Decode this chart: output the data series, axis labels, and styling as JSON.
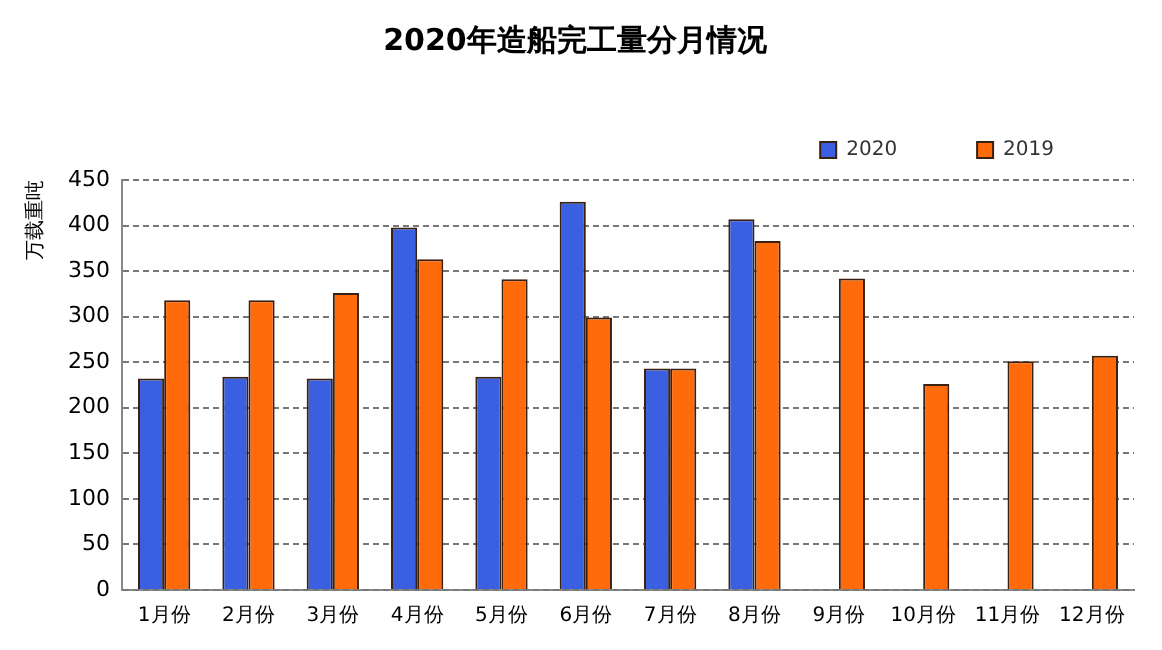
{
  "chart_data": {
    "type": "bar",
    "title": "2020年造船完工量分月情况",
    "ylabel": "万载重吨",
    "categories": [
      "1月份",
      "2月份",
      "3月份",
      "4月份",
      "5月份",
      "6月份",
      "7月份",
      "8月份",
      "9月份",
      "10月份",
      "11月份",
      "12月份"
    ],
    "series": [
      {
        "name": "2020",
        "color": "#3a5fe0",
        "values": [
          232,
          234,
          232,
          398,
          234,
          426,
          243,
          407,
          null,
          null,
          null,
          null
        ]
      },
      {
        "name": "2019",
        "color": "#ff6a0a",
        "values": [
          318,
          318,
          326,
          363,
          341,
          299,
          243,
          383,
          342,
          226,
          251,
          257
        ]
      }
    ],
    "ylim": [
      0,
      450
    ],
    "yticks": [
      0,
      50,
      100,
      150,
      200,
      250,
      300,
      350,
      400,
      450
    ],
    "grid": "y",
    "legend": "top right"
  }
}
